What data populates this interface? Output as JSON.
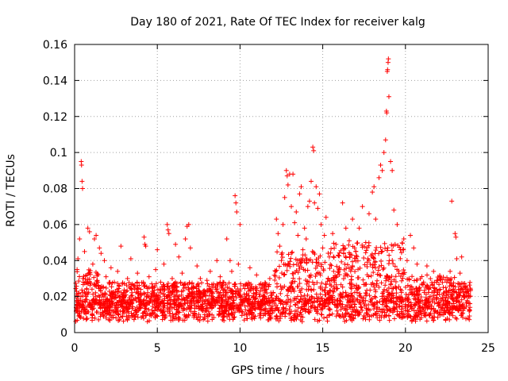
{
  "chart_data": {
    "type": "scatter",
    "title": "Day 180 of 2021, Rate Of TEC Index for receiver kalg",
    "xlabel": "GPS time / hours",
    "ylabel": "ROTI / TECUs",
    "xlim": [
      0,
      25
    ],
    "ylim": [
      0,
      0.16
    ],
    "x_ticks": [
      0,
      5,
      10,
      15,
      20,
      25
    ],
    "y_ticks": [
      0,
      0.02,
      0.04,
      0.06,
      0.08,
      0.1,
      0.12,
      0.14,
      0.16
    ],
    "x_tick_labels": [
      "0",
      "5",
      "10",
      "15",
      "20",
      "25"
    ],
    "y_tick_labels": [
      "0",
      "0.02",
      "0.04",
      "0.06",
      "0.08",
      "0.1",
      "0.12",
      "0.14",
      "0.16"
    ],
    "grid": true,
    "marker": "plus",
    "color": "#ff0000",
    "series": [
      {
        "name": "ROTI",
        "points": [
          [
            0.1,
            0.012
          ],
          [
            0.15,
            0.035
          ],
          [
            0.2,
            0.041
          ],
          [
            0.25,
            0.022
          ],
          [
            0.3,
            0.052
          ],
          [
            0.35,
            0.018
          ],
          [
            0.4,
            0.095
          ],
          [
            0.42,
            0.093
          ],
          [
            0.45,
            0.084
          ],
          [
            0.48,
            0.08
          ],
          [
            0.5,
            0.03
          ],
          [
            0.6,
            0.045
          ],
          [
            0.7,
            0.02
          ],
          [
            0.8,
            0.058
          ],
          [
            0.9,
            0.056
          ],
          [
            1.0,
            0.015
          ],
          [
            1.1,
            0.038
          ],
          [
            1.2,
            0.052
          ],
          [
            1.3,
            0.054
          ],
          [
            1.4,
            0.028
          ],
          [
            1.5,
            0.047
          ],
          [
            1.6,
            0.044
          ],
          [
            1.7,
            0.021
          ],
          [
            1.8,
            0.04
          ],
          [
            1.9,
            0.031
          ],
          [
            2.0,
            0.018
          ],
          [
            2.2,
            0.036
          ],
          [
            2.4,
            0.028
          ],
          [
            2.6,
            0.034
          ],
          [
            2.8,
            0.048
          ],
          [
            3.0,
            0.022
          ],
          [
            3.2,
            0.03
          ],
          [
            3.4,
            0.041
          ],
          [
            3.6,
            0.026
          ],
          [
            3.8,
            0.033
          ],
          [
            4.0,
            0.024
          ],
          [
            4.2,
            0.053
          ],
          [
            4.25,
            0.049
          ],
          [
            4.3,
            0.048
          ],
          [
            4.5,
            0.031
          ],
          [
            4.7,
            0.02
          ],
          [
            4.9,
            0.035
          ],
          [
            5.0,
            0.046
          ],
          [
            5.2,
            0.028
          ],
          [
            5.4,
            0.038
          ],
          [
            5.6,
            0.06
          ],
          [
            5.65,
            0.057
          ],
          [
            5.7,
            0.055
          ],
          [
            5.9,
            0.03
          ],
          [
            6.1,
            0.049
          ],
          [
            6.3,
            0.042
          ],
          [
            6.5,
            0.033
          ],
          [
            6.7,
            0.052
          ],
          [
            6.8,
            0.059
          ],
          [
            6.9,
            0.06
          ],
          [
            7.0,
            0.047
          ],
          [
            7.2,
            0.025
          ],
          [
            7.4,
            0.037
          ],
          [
            7.6,
            0.03
          ],
          [
            7.8,
            0.022
          ],
          [
            8.0,
            0.029
          ],
          [
            8.2,
            0.034
          ],
          [
            8.4,
            0.027
          ],
          [
            8.6,
            0.04
          ],
          [
            8.8,
            0.031
          ],
          [
            9.0,
            0.021
          ],
          [
            9.2,
            0.052
          ],
          [
            9.4,
            0.04
          ],
          [
            9.5,
            0.034
          ],
          [
            9.6,
            0.02
          ],
          [
            9.7,
            0.076
          ],
          [
            9.75,
            0.072
          ],
          [
            9.8,
            0.067
          ],
          [
            9.9,
            0.038
          ],
          [
            10.0,
            0.06
          ],
          [
            10.2,
            0.026
          ],
          [
            10.4,
            0.018
          ],
          [
            10.6,
            0.036
          ],
          [
            10.8,
            0.015
          ],
          [
            11.0,
            0.032
          ],
          [
            11.2,
            0.02
          ],
          [
            11.4,
            0.016
          ],
          [
            11.6,
            0.024
          ],
          [
            11.8,
            0.03
          ],
          [
            12.0,
            0.022
          ],
          [
            12.2,
            0.063
          ],
          [
            12.3,
            0.055
          ],
          [
            12.4,
            0.048
          ],
          [
            12.5,
            0.04
          ],
          [
            12.6,
            0.06
          ],
          [
            12.7,
            0.075
          ],
          [
            12.8,
            0.09
          ],
          [
            12.85,
            0.087
          ],
          [
            12.9,
            0.082
          ],
          [
            13.0,
            0.088
          ],
          [
            13.1,
            0.07
          ],
          [
            13.2,
            0.088
          ],
          [
            13.3,
            0.061
          ],
          [
            13.4,
            0.067
          ],
          [
            13.5,
            0.054
          ],
          [
            13.6,
            0.077
          ],
          [
            13.7,
            0.081
          ],
          [
            13.8,
            0.046
          ],
          [
            13.9,
            0.058
          ],
          [
            14.0,
            0.052
          ],
          [
            14.1,
            0.07
          ],
          [
            14.2,
            0.073
          ],
          [
            14.3,
            0.084
          ],
          [
            14.4,
            0.103
          ],
          [
            14.45,
            0.101
          ],
          [
            14.5,
            0.072
          ],
          [
            14.6,
            0.081
          ],
          [
            14.7,
            0.069
          ],
          [
            14.8,
            0.077
          ],
          [
            14.9,
            0.06
          ],
          [
            15.0,
            0.047
          ],
          [
            15.1,
            0.054
          ],
          [
            15.2,
            0.064
          ],
          [
            15.4,
            0.042
          ],
          [
            15.6,
            0.055
          ],
          [
            15.8,
            0.049
          ],
          [
            16.0,
            0.036
          ],
          [
            16.2,
            0.072
          ],
          [
            16.4,
            0.058
          ],
          [
            16.6,
            0.051
          ],
          [
            16.8,
            0.063
          ],
          [
            17.0,
            0.045
          ],
          [
            17.2,
            0.058
          ],
          [
            17.4,
            0.07
          ],
          [
            17.6,
            0.05
          ],
          [
            17.8,
            0.066
          ],
          [
            18.0,
            0.078
          ],
          [
            18.1,
            0.081
          ],
          [
            18.2,
            0.063
          ],
          [
            18.4,
            0.086
          ],
          [
            18.5,
            0.093
          ],
          [
            18.6,
            0.09
          ],
          [
            18.7,
            0.1
          ],
          [
            18.8,
            0.107
          ],
          [
            18.85,
            0.123
          ],
          [
            18.87,
            0.122
          ],
          [
            18.9,
            0.145
          ],
          [
            18.92,
            0.146
          ],
          [
            18.95,
            0.15
          ],
          [
            18.97,
            0.152
          ],
          [
            19.0,
            0.131
          ],
          [
            19.1,
            0.095
          ],
          [
            19.2,
            0.09
          ],
          [
            19.3,
            0.068
          ],
          [
            19.5,
            0.06
          ],
          [
            19.7,
            0.046
          ],
          [
            19.9,
            0.052
          ],
          [
            20.1,
            0.04
          ],
          [
            20.3,
            0.054
          ],
          [
            20.5,
            0.047
          ],
          [
            20.7,
            0.038
          ],
          [
            20.9,
            0.03
          ],
          [
            21.1,
            0.028
          ],
          [
            21.3,
            0.037
          ],
          [
            21.5,
            0.025
          ],
          [
            21.7,
            0.034
          ],
          [
            21.9,
            0.029
          ],
          [
            22.1,
            0.024
          ],
          [
            22.3,
            0.022
          ],
          [
            22.5,
            0.028
          ],
          [
            22.7,
            0.034
          ],
          [
            22.8,
            0.073
          ],
          [
            22.9,
            0.026
          ],
          [
            23.0,
            0.055
          ],
          [
            23.05,
            0.053
          ],
          [
            23.1,
            0.041
          ],
          [
            23.3,
            0.033
          ],
          [
            23.4,
            0.042
          ],
          [
            23.6,
            0.025
          ],
          [
            23.8,
            0.02
          ],
          [
            23.9,
            0.014
          ]
        ],
        "band_note": "dense background scatter 0.005–0.035 across all hours"
      }
    ]
  }
}
